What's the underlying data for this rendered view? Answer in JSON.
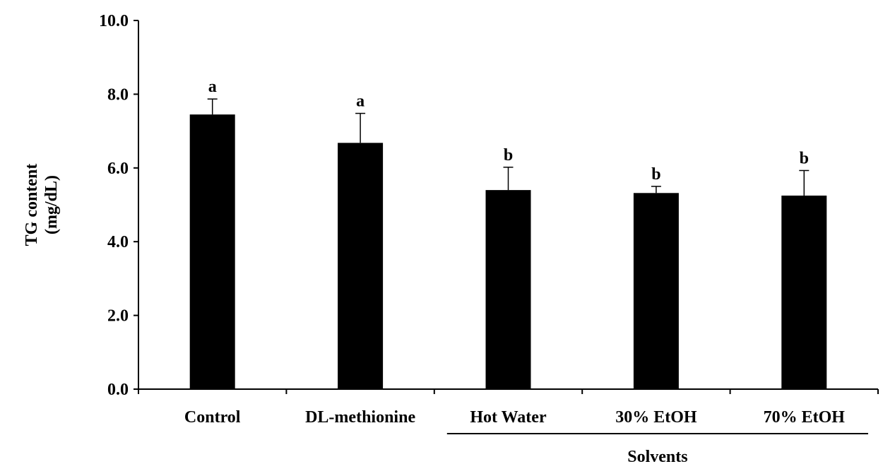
{
  "chart_data": {
    "type": "bar",
    "ylabel_lines": [
      "TG content",
      "(mg/dL)"
    ],
    "ylim": [
      0,
      10
    ],
    "yticks": [
      "0.0",
      "2.0",
      "4.0",
      "6.0",
      "8.0",
      "10.0"
    ],
    "ytick_values": [
      0,
      2,
      4,
      6,
      8,
      10
    ],
    "categories": [
      "Control",
      "DL-methionine",
      "Hot Water",
      "30% EtOH",
      "70% EtOH"
    ],
    "values": [
      7.45,
      6.68,
      5.4,
      5.32,
      5.25
    ],
    "errors": [
      0.42,
      0.8,
      0.62,
      0.18,
      0.68
    ],
    "significance": [
      "a",
      "a",
      "b",
      "b",
      "b"
    ],
    "group_label": "Solvents",
    "group_categories": [
      "Hot Water",
      "30% EtOH",
      "70% EtOH"
    ],
    "grid": false,
    "colors": {
      "bar": "#000000"
    }
  }
}
